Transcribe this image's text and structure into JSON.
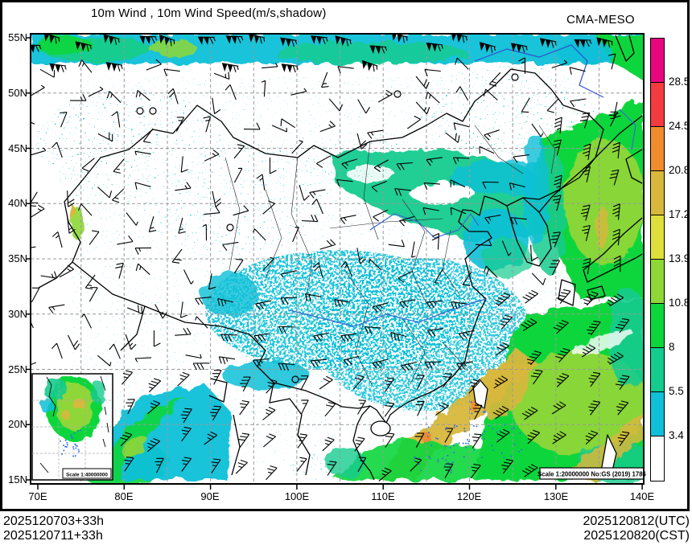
{
  "header": {
    "title": "10m Wind , 10m Wind Speed(m/s,shadow)",
    "model_label": "CMA-MESO"
  },
  "axes": {
    "y_ticks": [
      "55N",
      "50N",
      "45N",
      "40N",
      "35N",
      "30N",
      "25N",
      "20N",
      "15N"
    ],
    "x_ticks": [
      "70E",
      "80E",
      "90E",
      "100E",
      "110E",
      "120E",
      "130E",
      "140E"
    ]
  },
  "colorbar": {
    "tick_labels": [
      "28.5",
      "24.5",
      "20.8",
      "17.2",
      "13.9",
      "10.8",
      "8",
      "5.5",
      "3.4"
    ],
    "segment_colors_top_to_bottom": [
      "#E8067F",
      "#F43B3F",
      "#F08B2E",
      "#D8B83C",
      "#DEDF3C",
      "#8FD737",
      "#0CD63C",
      "#13CC8E",
      "#0FC0D8",
      "#FFFFFF"
    ]
  },
  "map": {
    "scale_note": "Scale 1:20000000 No:GS (2019) 1786",
    "inset_scale_note": "Scale 1:40000000"
  },
  "footer": {
    "left_line1": "2025120703+33h",
    "left_line2": "2025120711+33h",
    "right_line1": "2025120812(UTC)",
    "right_line2": "2025120820(CST)"
  },
  "chart_data": {
    "type": "heatmap",
    "title": "10m Wind , 10m Wind Speed(m/s,shadow)",
    "model": "CMA-MESO",
    "projection": "lat-lon map of China and surrounding seas",
    "x_axis": {
      "label": "longitude",
      "tick_labels": [
        "70E",
        "80E",
        "90E",
        "100E",
        "110E",
        "120E",
        "130E",
        "140E"
      ],
      "range_deg_east": [
        70,
        140
      ]
    },
    "y_axis": {
      "label": "latitude",
      "tick_labels": [
        "55N",
        "50N",
        "45N",
        "40N",
        "35N",
        "30N",
        "25N",
        "20N",
        "15N"
      ],
      "range_deg_north": [
        15,
        55
      ]
    },
    "shading_variable": "10m wind speed (m/s)",
    "shading_levels_m_s": [
      3.4,
      5.5,
      8,
      10.8,
      13.9,
      17.2,
      20.8,
      24.5,
      28.5
    ],
    "level_colors_low_to_high": [
      "#FFFFFF",
      "#0FC0D8",
      "#13CC8E",
      "#0CD63C",
      "#8FD737",
      "#DEDF3C",
      "#D8B83C",
      "#F08B2E",
      "#F43B3F",
      "#E8067F"
    ],
    "vector_overlay": "10m wind barbs",
    "legend_position": "right",
    "graticule": "dashed lines every 5 degrees",
    "init_times": [
      "2025120703+33h",
      "2025120711+33h"
    ],
    "valid_times": [
      "2025120812(UTC)",
      "2025120820(CST)"
    ],
    "scale_notes": [
      "Scale 1:20000000 No:GS (2019) 1786",
      "Scale 1:40000000"
    ]
  }
}
